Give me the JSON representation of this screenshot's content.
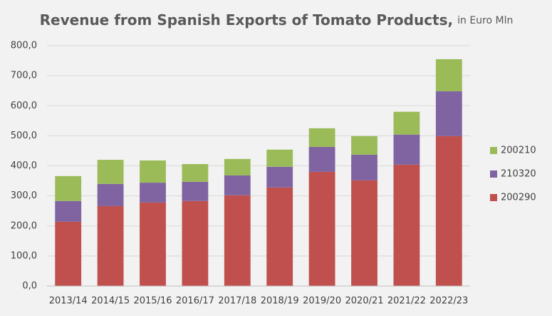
{
  "chart_data": {
    "type": "stacked_bar",
    "title": "Revenue from Spanish Exports of Tomato Products,",
    "subtitle": "in Euro Mln",
    "categories": [
      "2013/14",
      "2014/15",
      "2015/16",
      "2016/17",
      "2017/18",
      "2018/19",
      "2019/20",
      "2020/21",
      "2021/22",
      "2022/23"
    ],
    "series": [
      {
        "name": "200290",
        "color": "#c0504d",
        "values": [
          214,
          266,
          278,
          283,
          302,
          328,
          380,
          352,
          404,
          499
        ]
      },
      {
        "name": "210320",
        "color": "#8064a2",
        "values": [
          69,
          74,
          66,
          64,
          66,
          69,
          83,
          85,
          100,
          149
        ]
      },
      {
        "name": "200210",
        "color": "#9bbb59",
        "values": [
          83,
          80,
          74,
          59,
          55,
          57,
          62,
          62,
          76,
          107
        ]
      }
    ],
    "ylim": [
      0,
      800
    ],
    "yticks": [
      {
        "value": 0,
        "label": "0,0"
      },
      {
        "value": 100,
        "label": "100,0"
      },
      {
        "value": 200,
        "label": "200,0"
      },
      {
        "value": 300,
        "label": "300,0"
      },
      {
        "value": 400,
        "label": "400,0"
      },
      {
        "value": 500,
        "label": "500,0"
      },
      {
        "value": 600,
        "label": "600,0"
      },
      {
        "value": 700,
        "label": "700,0"
      },
      {
        "value": 800,
        "label": "800,0"
      }
    ],
    "grid": true,
    "legend": "right"
  }
}
